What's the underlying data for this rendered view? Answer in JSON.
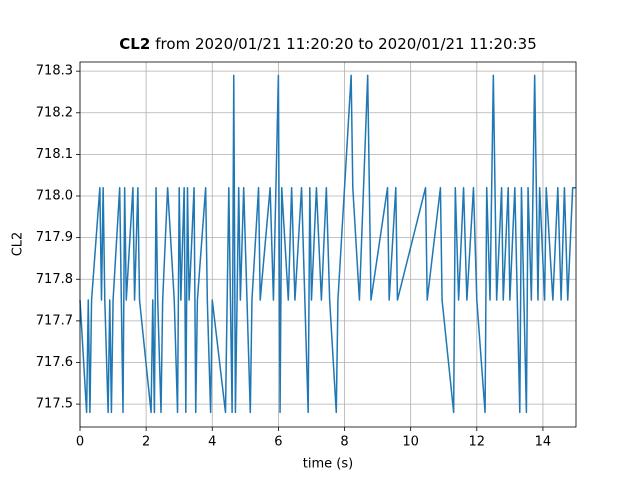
{
  "chart_data": {
    "type": "line",
    "title": {
      "signal": "CL2",
      "text": "from 2020/01/21 11:20:20 to 2020/01/21 11:20:35"
    },
    "x_label": "time (s)",
    "y_label": "CL2",
    "xlim": [
      0,
      15
    ],
    "xticks": [
      0,
      2,
      4,
      6,
      8,
      10,
      12,
      14
    ],
    "ylim": [
      717.445,
      718.322
    ],
    "yticks": [
      717.5,
      717.6,
      717.7,
      717.8,
      717.9,
      {
        "value": 718,
        "label": "718.0"
      },
      718.1,
      718.2,
      718.3
    ],
    "grid": true,
    "series": [
      {
        "name": "CL2",
        "color": "#1f77b4",
        "x": [
          0,
          0.2,
          0.25,
          0.3,
          0.35,
          0.6,
          0.65,
          0.7,
          0.75,
          0.85,
          0.9,
          0.95,
          1.0,
          1.2,
          1.25,
          1.3,
          1.35,
          1.4,
          1.6,
          1.65,
          1.75,
          1.8,
          2.15,
          2.2,
          2.25,
          2.3,
          2.35,
          2.45,
          2.5,
          2.65,
          2.85,
          2.95,
          3.0,
          3.05,
          3.15,
          3.2,
          3.25,
          3.3,
          3.45,
          3.5,
          3.55,
          3.8,
          3.85,
          3.95,
          4.0,
          4.4,
          4.45,
          4.5,
          4.6,
          4.65,
          4.7,
          4.8,
          4.85,
          4.95,
          5.05,
          5.15,
          5.2,
          5.4,
          5.45,
          5.75,
          5.85,
          6.0,
          6.05,
          6.1,
          6.3,
          6.4,
          6.5,
          6.7,
          6.8,
          6.9,
          6.95,
          7.0,
          7.15,
          7.3,
          7.45,
          7.55,
          7.75,
          7.8,
          8.0,
          8.2,
          8.25,
          8.45,
          8.7,
          8.8,
          9.3,
          9.35,
          9.55,
          9.6,
          10.45,
          10.5,
          10.9,
          10.95,
          11.3,
          11.35,
          11.45,
          11.6,
          11.7,
          11.9,
          12.0,
          12.25,
          12.3,
          12.4,
          12.5,
          12.6,
          12.75,
          12.8,
          12.95,
          13.0,
          13.15,
          13.3,
          13.35,
          13.5,
          13.55,
          13.65,
          13.75,
          13.85,
          13.9,
          14.05,
          14.1,
          14.3,
          14.45,
          14.55,
          14.65,
          14.75,
          14.9,
          15.0
        ],
        "values": [
          717.75,
          717.48,
          717.75,
          717.48,
          717.75,
          718.02,
          717.75,
          718.02,
          717.75,
          717.48,
          717.75,
          717.48,
          717.75,
          718.02,
          717.75,
          717.48,
          718.02,
          717.75,
          718.02,
          717.75,
          718.02,
          717.75,
          717.48,
          717.75,
          717.48,
          718.02,
          717.75,
          717.48,
          717.75,
          718.02,
          717.75,
          717.48,
          718.02,
          717.75,
          718.02,
          717.48,
          718.02,
          717.75,
          718.02,
          717.48,
          717.75,
          718.02,
          717.75,
          717.48,
          717.75,
          717.48,
          717.75,
          718.02,
          717.48,
          718.29,
          717.48,
          718.02,
          717.75,
          718.02,
          717.75,
          717.48,
          717.75,
          718.02,
          717.75,
          718.02,
          717.75,
          718.29,
          717.48,
          718.02,
          717.75,
          718.02,
          717.75,
          718.02,
          717.75,
          717.48,
          718.02,
          717.75,
          718.02,
          717.75,
          718.02,
          717.75,
          717.48,
          717.75,
          718.02,
          718.29,
          718.02,
          717.75,
          718.29,
          717.75,
          718.02,
          717.75,
          718.02,
          717.75,
          718.02,
          717.75,
          718.02,
          717.75,
          717.48,
          718.02,
          717.75,
          718.02,
          717.75,
          718.02,
          717.75,
          717.48,
          718.02,
          717.75,
          718.29,
          717.75,
          718.02,
          717.75,
          718.02,
          717.75,
          718.02,
          717.48,
          718.02,
          717.48,
          718.02,
          717.75,
          718.29,
          717.75,
          718.02,
          717.75,
          718.02,
          717.75,
          718.02,
          717.75,
          718.02,
          717.75,
          718.02,
          718.02
        ]
      }
    ]
  }
}
